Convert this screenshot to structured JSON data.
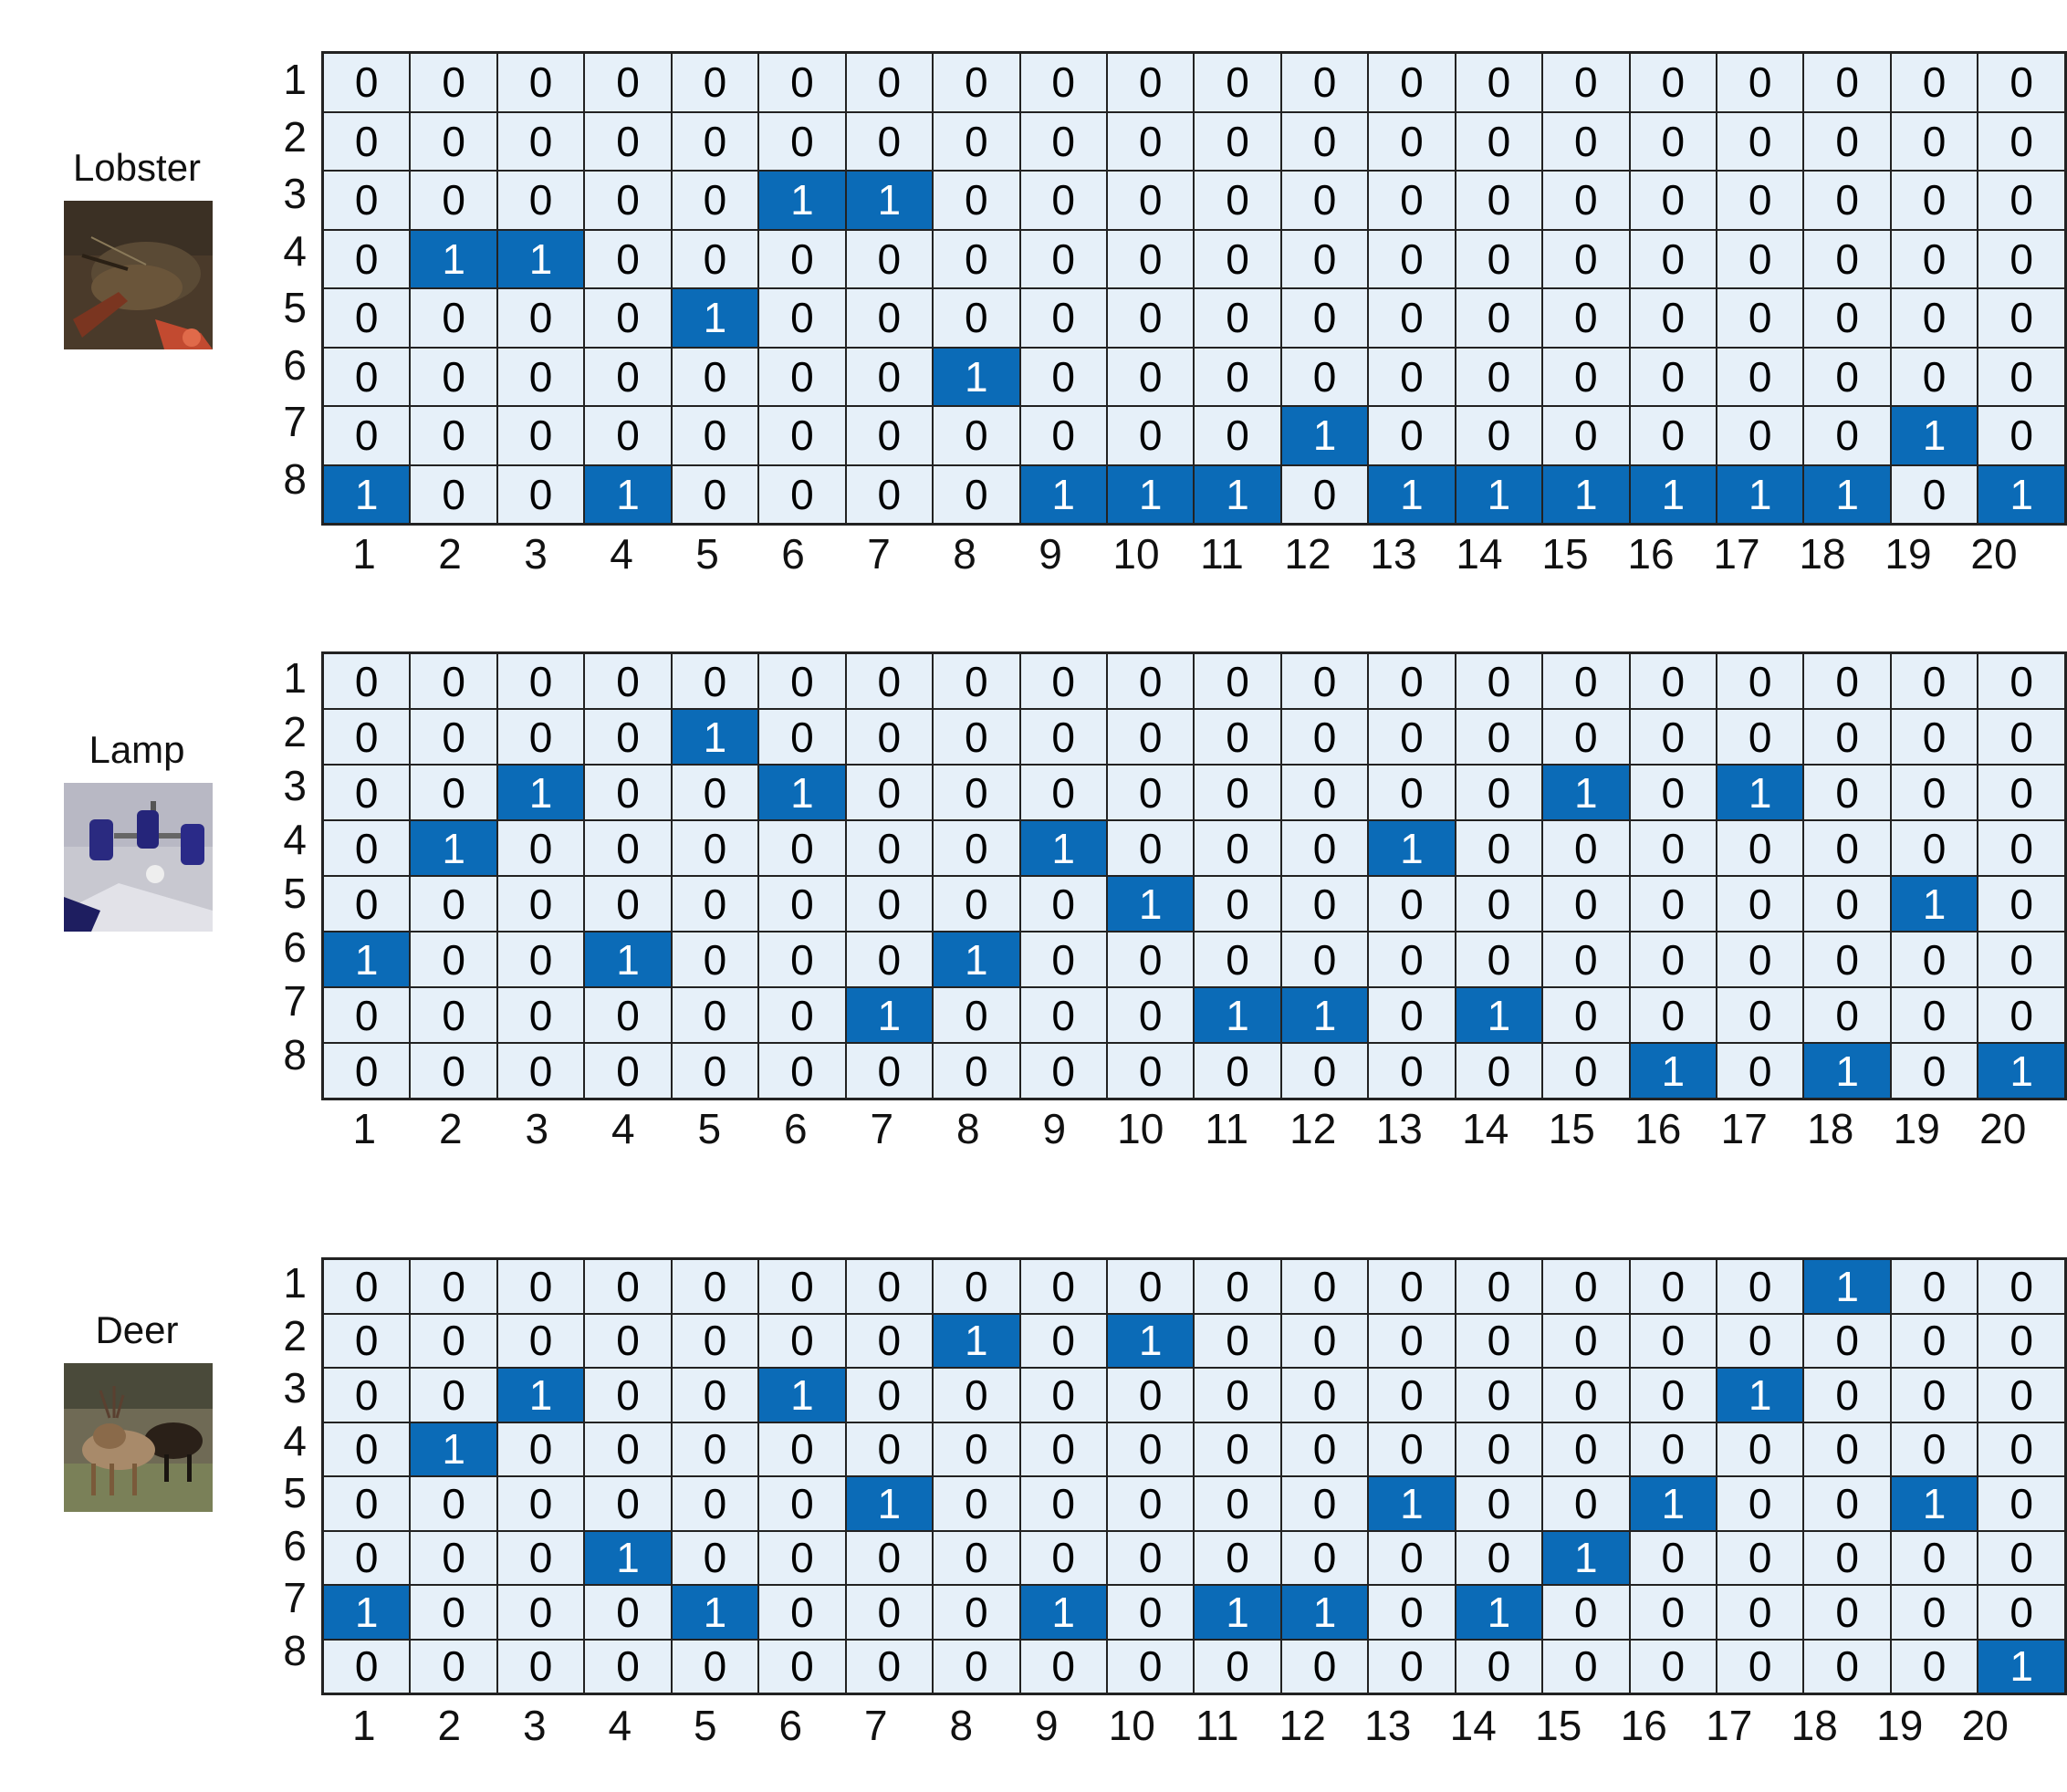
{
  "panels": [
    {
      "label": "Lobster",
      "image_icon": "lobster-photo",
      "row_labels": [
        "1",
        "2",
        "3",
        "4",
        "5",
        "6",
        "7",
        "8"
      ],
      "col_labels": [
        "1",
        "2",
        "3",
        "4",
        "5",
        "6",
        "7",
        "8",
        "9",
        "10",
        "11",
        "12",
        "13",
        "14",
        "15",
        "16",
        "17",
        "18",
        "19",
        "20"
      ],
      "matrix": [
        [
          0,
          0,
          0,
          0,
          0,
          0,
          0,
          0,
          0,
          0,
          0,
          0,
          0,
          0,
          0,
          0,
          0,
          0,
          0,
          0
        ],
        [
          0,
          0,
          0,
          0,
          0,
          0,
          0,
          0,
          0,
          0,
          0,
          0,
          0,
          0,
          0,
          0,
          0,
          0,
          0,
          0
        ],
        [
          0,
          0,
          0,
          0,
          0,
          1,
          1,
          0,
          0,
          0,
          0,
          0,
          0,
          0,
          0,
          0,
          0,
          0,
          0,
          0
        ],
        [
          0,
          1,
          1,
          0,
          0,
          0,
          0,
          0,
          0,
          0,
          0,
          0,
          0,
          0,
          0,
          0,
          0,
          0,
          0,
          0
        ],
        [
          0,
          0,
          0,
          0,
          1,
          0,
          0,
          0,
          0,
          0,
          0,
          0,
          0,
          0,
          0,
          0,
          0,
          0,
          0,
          0
        ],
        [
          0,
          0,
          0,
          0,
          0,
          0,
          0,
          1,
          0,
          0,
          0,
          0,
          0,
          0,
          0,
          0,
          0,
          0,
          0,
          0
        ],
        [
          0,
          0,
          0,
          0,
          0,
          0,
          0,
          0,
          0,
          0,
          0,
          1,
          0,
          0,
          0,
          0,
          0,
          0,
          1,
          0
        ],
        [
          1,
          0,
          0,
          1,
          0,
          0,
          0,
          0,
          1,
          1,
          1,
          0,
          1,
          1,
          1,
          1,
          1,
          1,
          0,
          1
        ]
      ]
    },
    {
      "label": "Lamp",
      "image_icon": "lamp-photo",
      "row_labels": [
        "1",
        "2",
        "3",
        "4",
        "5",
        "6",
        "7",
        "8"
      ],
      "col_labels": [
        "1",
        "2",
        "3",
        "4",
        "5",
        "6",
        "7",
        "8",
        "9",
        "10",
        "11",
        "12",
        "13",
        "14",
        "15",
        "16",
        "17",
        "18",
        "19",
        "20"
      ],
      "matrix": [
        [
          0,
          0,
          0,
          0,
          0,
          0,
          0,
          0,
          0,
          0,
          0,
          0,
          0,
          0,
          0,
          0,
          0,
          0,
          0,
          0
        ],
        [
          0,
          0,
          0,
          0,
          1,
          0,
          0,
          0,
          0,
          0,
          0,
          0,
          0,
          0,
          0,
          0,
          0,
          0,
          0,
          0
        ],
        [
          0,
          0,
          1,
          0,
          0,
          1,
          0,
          0,
          0,
          0,
          0,
          0,
          0,
          0,
          1,
          0,
          1,
          0,
          0,
          0
        ],
        [
          0,
          1,
          0,
          0,
          0,
          0,
          0,
          0,
          1,
          0,
          0,
          0,
          1,
          0,
          0,
          0,
          0,
          0,
          0,
          0
        ],
        [
          0,
          0,
          0,
          0,
          0,
          0,
          0,
          0,
          0,
          1,
          0,
          0,
          0,
          0,
          0,
          0,
          0,
          0,
          1,
          0
        ],
        [
          1,
          0,
          0,
          1,
          0,
          0,
          0,
          1,
          0,
          0,
          0,
          0,
          0,
          0,
          0,
          0,
          0,
          0,
          0,
          0
        ],
        [
          0,
          0,
          0,
          0,
          0,
          0,
          1,
          0,
          0,
          0,
          1,
          1,
          0,
          1,
          0,
          0,
          0,
          0,
          0,
          0
        ],
        [
          0,
          0,
          0,
          0,
          0,
          0,
          0,
          0,
          0,
          0,
          0,
          0,
          0,
          0,
          0,
          1,
          0,
          1,
          0,
          1
        ]
      ]
    },
    {
      "label": "Deer",
      "image_icon": "deer-photo",
      "row_labels": [
        "1",
        "2",
        "3",
        "4",
        "5",
        "6",
        "7",
        "8"
      ],
      "col_labels": [
        "1",
        "2",
        "3",
        "4",
        "5",
        "6",
        "7",
        "8",
        "9",
        "10",
        "11",
        "12",
        "13",
        "14",
        "15",
        "16",
        "17",
        "18",
        "19",
        "20"
      ],
      "matrix": [
        [
          0,
          0,
          0,
          0,
          0,
          0,
          0,
          0,
          0,
          0,
          0,
          0,
          0,
          0,
          0,
          0,
          0,
          1,
          0,
          0
        ],
        [
          0,
          0,
          0,
          0,
          0,
          0,
          0,
          1,
          0,
          1,
          0,
          0,
          0,
          0,
          0,
          0,
          0,
          0,
          0,
          0
        ],
        [
          0,
          0,
          1,
          0,
          0,
          1,
          0,
          0,
          0,
          0,
          0,
          0,
          0,
          0,
          0,
          0,
          1,
          0,
          0,
          0
        ],
        [
          0,
          1,
          0,
          0,
          0,
          0,
          0,
          0,
          0,
          0,
          0,
          0,
          0,
          0,
          0,
          0,
          0,
          0,
          0,
          0
        ],
        [
          0,
          0,
          0,
          0,
          0,
          0,
          1,
          0,
          0,
          0,
          0,
          0,
          1,
          0,
          0,
          1,
          0,
          0,
          1,
          0
        ],
        [
          0,
          0,
          0,
          1,
          0,
          0,
          0,
          0,
          0,
          0,
          0,
          0,
          0,
          0,
          1,
          0,
          0,
          0,
          0,
          0
        ],
        [
          1,
          0,
          0,
          0,
          1,
          0,
          0,
          0,
          1,
          0,
          1,
          1,
          0,
          1,
          0,
          0,
          0,
          0,
          0,
          0
        ],
        [
          0,
          0,
          0,
          0,
          0,
          0,
          0,
          0,
          0,
          0,
          0,
          0,
          0,
          0,
          0,
          0,
          0,
          0,
          0,
          1
        ]
      ]
    }
  ],
  "colors": {
    "on": "#0b6bb7",
    "off": "#e6f0f9",
    "border": "#222222"
  }
}
